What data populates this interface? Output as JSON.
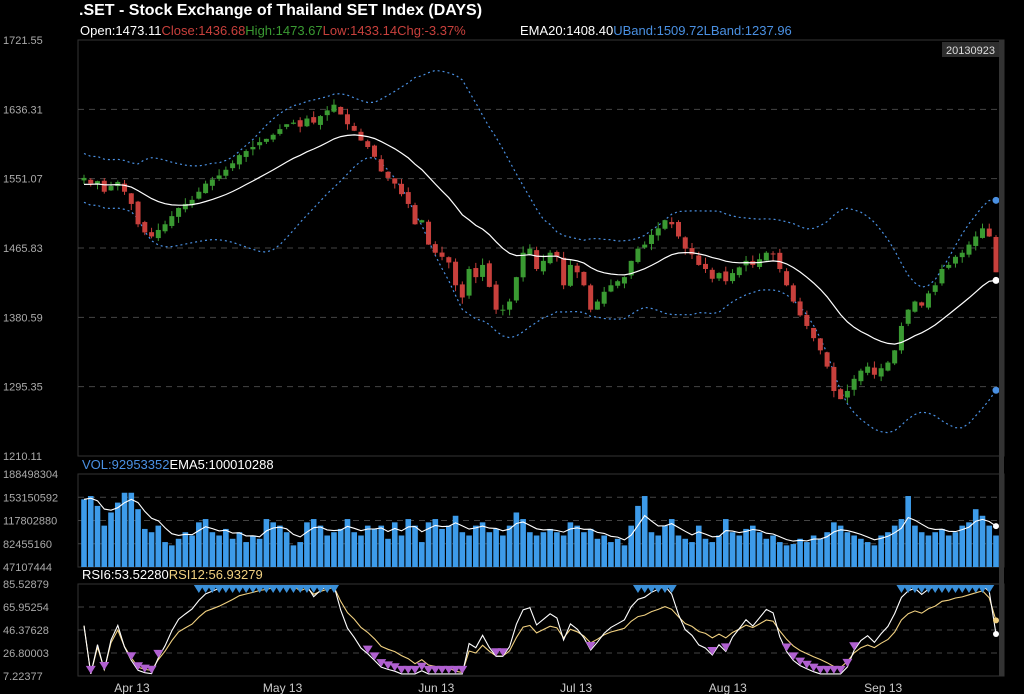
{
  "header": {
    "title": ".SET - Stock Exchange of Thailand SET Index (DAYS)",
    "open": "Open:1473.11",
    "close": "Close:1436.68",
    "high": "High:1473.67",
    "low": "Low:1433.14",
    "chg": "Chg:-3.37%",
    "ema": "EMA20:1408.40",
    "uband": "UBand:1509.72",
    "lband": "LBand:1237.96",
    "date_badge": "20130923"
  },
  "colors": {
    "up": "#3a9a32",
    "down": "#c8403c",
    "blue": "#4a90e2",
    "volume": "#3d9be9",
    "ema": "#ffffff",
    "rsi12": "#f0d080",
    "grid": "#444444",
    "axis": "#aaaaaa",
    "marker_blue": "#3a8fd8",
    "marker_purple": "#b060d0"
  },
  "chart_data": [
    {
      "type": "candlestick",
      "title": ".SET - Stock Exchange of Thailand SET Index (DAYS)",
      "y_ticks": [
        "1721.55",
        "1636.31",
        "1551.07",
        "1465.83",
        "1380.59",
        "1295.35",
        "1210.11"
      ],
      "ylim": [
        1210.11,
        1721.55
      ],
      "x_ticks": [
        {
          "label": "Apr 13",
          "day": 7
        },
        {
          "label": "May 13",
          "day": 29
        },
        {
          "label": "Jun 13",
          "day": 52
        },
        {
          "label": "Jul 13",
          "day": 73
        },
        {
          "label": "Aug 13",
          "day": 95
        },
        {
          "label": "Sep 13",
          "day": 118
        }
      ],
      "close": [
        1552,
        1545,
        1548,
        1535,
        1542,
        1547,
        1535,
        1520,
        1495,
        1485,
        1480,
        1488,
        1495,
        1505,
        1515,
        1520,
        1525,
        1535,
        1545,
        1550,
        1555,
        1562,
        1570,
        1580,
        1585,
        1590,
        1596,
        1600,
        1605,
        1612,
        1618,
        1620,
        1615,
        1625,
        1620,
        1628,
        1635,
        1642,
        1630,
        1618,
        1610,
        1598,
        1590,
        1578,
        1560,
        1552,
        1545,
        1532,
        1520,
        1495,
        1500,
        1470,
        1460,
        1455,
        1448,
        1420,
        1405,
        1440,
        1430,
        1445,
        1418,
        1390,
        1390,
        1400,
        1430,
        1460,
        1465,
        1440,
        1450,
        1460,
        1455,
        1420,
        1445,
        1436,
        1420,
        1390,
        1400,
        1412,
        1420,
        1425,
        1430,
        1450,
        1465,
        1470,
        1482,
        1490,
        1500,
        1495,
        1480,
        1465,
        1458,
        1445,
        1440,
        1428,
        1435,
        1425,
        1435,
        1442,
        1450,
        1445,
        1452,
        1460,
        1458,
        1440,
        1420,
        1400,
        1383,
        1370,
        1355,
        1340,
        1320,
        1290,
        1280,
        1290,
        1305,
        1315,
        1320,
        1310,
        1318,
        1325,
        1340,
        1370,
        1390,
        1400,
        1395,
        1410,
        1420,
        1440,
        1445,
        1455,
        1460,
        1470,
        1480,
        1490,
        1480,
        1436
      ],
      "volume_title": "VOL:92953352",
      "volume_ema_label": "EMA5:100010288",
      "volume_y_ticks": [
        "188498304",
        "153150592",
        "117802880",
        "82455160",
        "47107444"
      ],
      "volume_ylim": [
        47107444,
        188498304
      ],
      "volume": [
        150000000,
        155000000,
        140000000,
        110000000,
        130000000,
        145000000,
        160000000,
        160000000,
        135000000,
        105000000,
        100000000,
        110000000,
        85000000,
        80000000,
        90000000,
        100000000,
        95000000,
        115000000,
        120000000,
        100000000,
        95000000,
        105000000,
        90000000,
        100000000,
        85000000,
        95000000,
        90000000,
        120000000,
        115000000,
        110000000,
        100000000,
        80000000,
        85000000,
        115000000,
        120000000,
        110000000,
        95000000,
        100000000,
        105000000,
        120000000,
        100000000,
        95000000,
        110000000,
        105000000,
        110000000,
        90000000,
        115000000,
        95000000,
        120000000,
        110000000,
        85000000,
        115000000,
        120000000,
        105000000,
        110000000,
        125000000,
        100000000,
        95000000,
        110000000,
        115000000,
        100000000,
        105000000,
        95000000,
        110000000,
        130000000,
        120000000,
        100000000,
        95000000,
        100000000,
        105000000,
        100000000,
        95000000,
        115000000,
        110000000,
        100000000,
        105000000,
        90000000,
        95000000,
        85000000,
        90000000,
        80000000,
        110000000,
        140000000,
        155000000,
        100000000,
        95000000,
        110000000,
        120000000,
        95000000,
        90000000,
        85000000,
        110000000,
        90000000,
        85000000,
        95000000,
        120000000,
        100000000,
        95000000,
        105000000,
        110000000,
        100000000,
        90000000,
        95000000,
        85000000,
        80000000,
        82000000,
        90000000,
        85000000,
        95000000,
        90000000,
        100000000,
        115000000,
        110000000,
        100000000,
        95000000,
        90000000,
        85000000,
        80000000,
        95000000,
        100000000,
        110000000,
        120000000,
        155000000,
        110000000,
        100000000,
        95000000,
        100000000,
        105000000,
        95000000,
        100000000,
        110000000,
        115000000,
        135000000,
        125000000,
        110000000,
        95000000
      ],
      "rsi_title": "RSI6:53.52280",
      "rsi12_title": "RSI12:56.93279",
      "rsi_y_ticks": [
        "85.52879",
        "65.95254",
        "46.37628",
        "26.80003",
        "7.22377"
      ],
      "rsi_ylim": [
        7.22377,
        85.52879
      ]
    }
  ]
}
